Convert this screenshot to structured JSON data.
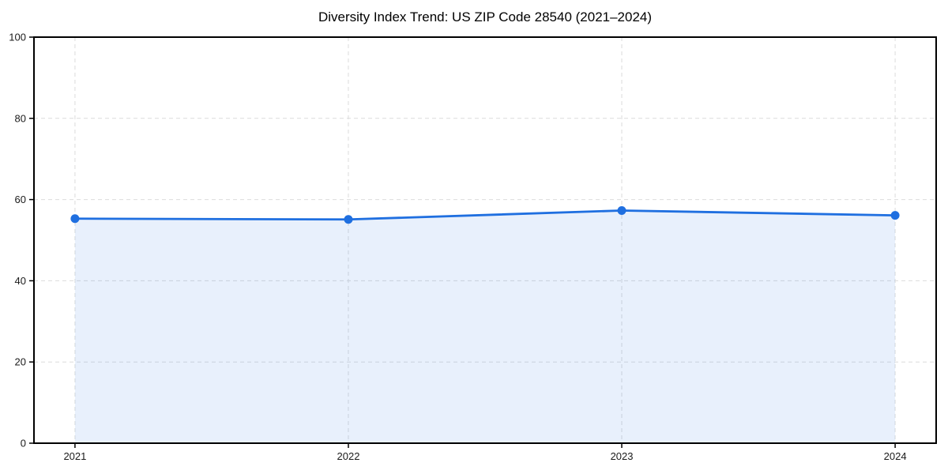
{
  "colors": {
    "line": "#1f6fe0",
    "marker": "#1f6fe0",
    "area_fill": "rgba(31,111,224,0.10)",
    "grid": "#dcdcdc",
    "spine": "#000000",
    "tick_label": "#1a1a1a",
    "title_text": "#000000",
    "background": "#ffffff"
  },
  "chart_data": {
    "type": "area",
    "title": "Diversity Index Trend: US ZIP Code 28540 (2021–2024)",
    "series_name": "Diversity Index",
    "x": [
      2021,
      2022,
      2023,
      2024
    ],
    "categories": [
      "2021",
      "2022",
      "2023",
      "2024"
    ],
    "values": [
      55.3,
      55.1,
      57.3,
      56.1
    ],
    "xlabel": "",
    "ylabel": "",
    "ylim": [
      0,
      100
    ],
    "yticks": [
      0,
      20,
      40,
      60,
      80,
      100
    ],
    "xlim": [
      2020.85,
      2024.15
    ],
    "grid": true,
    "grid_style": "dashed",
    "legend_position": "none",
    "marker": "circle"
  }
}
